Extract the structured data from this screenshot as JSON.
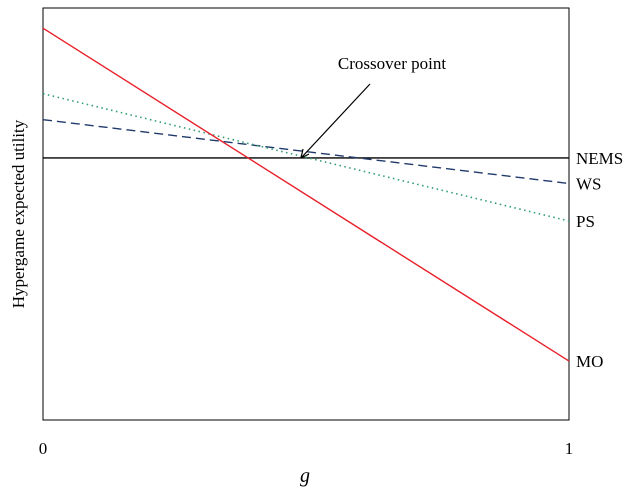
{
  "chart_data": {
    "type": "line",
    "title": "",
    "xlabel": "g",
    "ylabel": "Hypergame expected utility",
    "xlim": [
      0,
      1
    ],
    "ylim": [
      0,
      1
    ],
    "x_ticks": [
      "0",
      "1"
    ],
    "grid": false,
    "legend": "none",
    "series": [
      {
        "name": "NEMS",
        "x": [
          0,
          1
        ],
        "y": [
          0.636,
          0.636
        ],
        "color": "#000000",
        "dash": "solid"
      },
      {
        "name": "WS",
        "x": [
          0,
          1
        ],
        "y": [
          0.729,
          0.574
        ],
        "color": "#1f3a6b",
        "dash": "dashed"
      },
      {
        "name": "PS",
        "x": [
          0,
          1
        ],
        "y": [
          0.792,
          0.483
        ],
        "color": "#2e9e6e",
        "dash": "dotted"
      },
      {
        "name": "MO",
        "x": [
          0,
          1
        ],
        "y": [
          0.951,
          0.143
        ],
        "color": "#e8202a",
        "dash": "solid"
      }
    ],
    "annotations": [
      {
        "text": "Crossover point",
        "x": 0.49,
        "y": 0.636
      }
    ]
  }
}
